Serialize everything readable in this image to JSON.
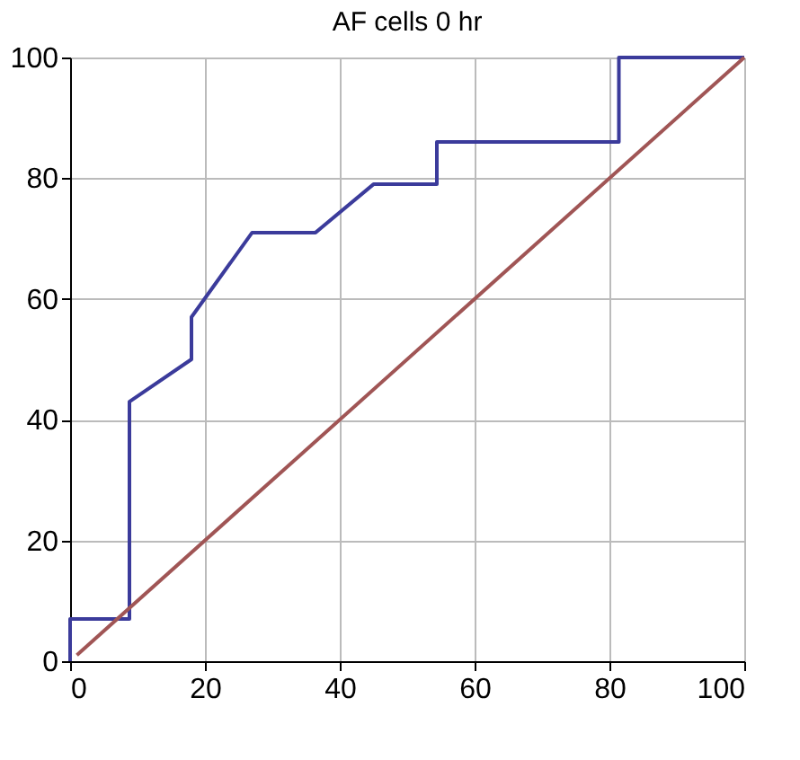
{
  "chart_data": {
    "type": "line",
    "title": "AF cells 0 hr",
    "series": [
      {
        "color": "#3b3b9b",
        "x": [
          0,
          0,
          8.8,
          8.8,
          18,
          18,
          27,
          36.4,
          45,
          54.4,
          54.4,
          81.4,
          81.4,
          100
        ],
        "values": [
          0,
          7,
          7,
          43,
          50,
          57,
          71,
          71,
          79,
          79,
          86,
          86,
          100,
          100
        ]
      },
      {
        "color": "#a05555",
        "x": [
          1,
          100
        ],
        "values": [
          1,
          100
        ]
      }
    ],
    "xlim": [
      0,
      100
    ],
    "ylim": [
      0,
      100
    ],
    "xticks": [
      0,
      20,
      40,
      60,
      80,
      100
    ],
    "yticks": [
      0,
      20,
      40,
      60,
      80,
      100
    ],
    "grid": true,
    "marker": "none",
    "line_style": "solid"
  }
}
